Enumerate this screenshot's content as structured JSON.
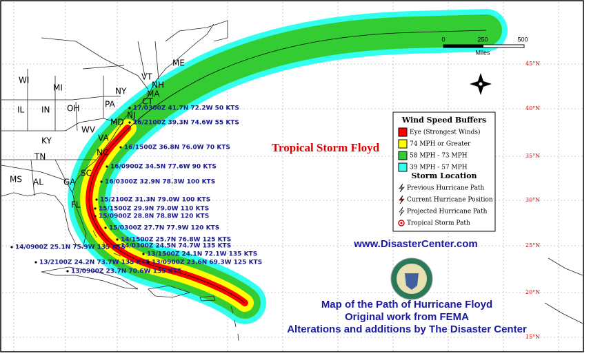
{
  "map": {
    "title": "Tropical Storm Floyd",
    "state_labels": [
      "WI",
      "MI",
      "NY",
      "ME",
      "VT",
      "NH",
      "MA",
      "CT",
      "PA",
      "OH",
      "IN",
      "IL",
      "NJ",
      "MD",
      "WV",
      "VA",
      "KY",
      "NC",
      "TN",
      "SC",
      "MS",
      "AL",
      "GA",
      "FL"
    ],
    "latitude_labels": [
      "45°N",
      "40°N",
      "35°N",
      "30°N",
      "25°N",
      "20°N",
      "15°N"
    ],
    "storm_positions": [
      "17/0300Z 41.7N 72.2W 50 KTS",
      "16/2100Z 39.3N 74.6W 55 KTS",
      "16/1500Z 36.8N 76.0W 70 KTS",
      "16/0900Z 34.5N 77.6W 90 KTS",
      "16/0300Z 32.9N 78.3W 100 KTS",
      "15/2100Z 31.3N 79.0W 100 KTS",
      "15/1500Z 29.9N 79.0W 110 KTS",
      "15/0900Z 28.8N 78.8W 120 KTS",
      "15/0300Z 27.7N 77.9W 120 KTS",
      "14/1500Z 25.7N 76.8W 125 KTS",
      "14/0900Z 25.1N 75.9W 135 KTS",
      "14/0300Z 24.5N 74.7W 135 KTS",
      "13/1500Z 24.1N 72.1W 135 KTS",
      "13/2100Z 24.2N 73.7W 135 KTS",
      "13/0900Z 23.6N 69.3W 125 KTS",
      "13/0900Z 23.7N 70.6W 135 KTS"
    ],
    "scale": {
      "ticks": [
        "0",
        "250",
        "500"
      ],
      "unit": "Miles"
    },
    "legend": {
      "title": "Wind Speed Buffers",
      "buffers": [
        {
          "label": "Eye (Strongest Winds)",
          "color": "#ff0000"
        },
        {
          "label": "74 MPH or Greater",
          "color": "#ffff00"
        },
        {
          "label": "58 MPH - 73 MPH",
          "color": "#33cc33"
        },
        {
          "label": "39 MPH - 57 MPH",
          "color": "#33ffee"
        }
      ],
      "location_title": "Storm Location",
      "locations": [
        "Previous Hurricane Path",
        "Current Hurricane Position",
        "Projected Hurricane Path",
        "Tropical Storm Path"
      ]
    },
    "website": "www.DisasterCenter.com",
    "credits": [
      "Map of the Path of Hurricane Floyd",
      "Original work from FEMA",
      "Alterations and additions by The Disaster Center"
    ]
  }
}
